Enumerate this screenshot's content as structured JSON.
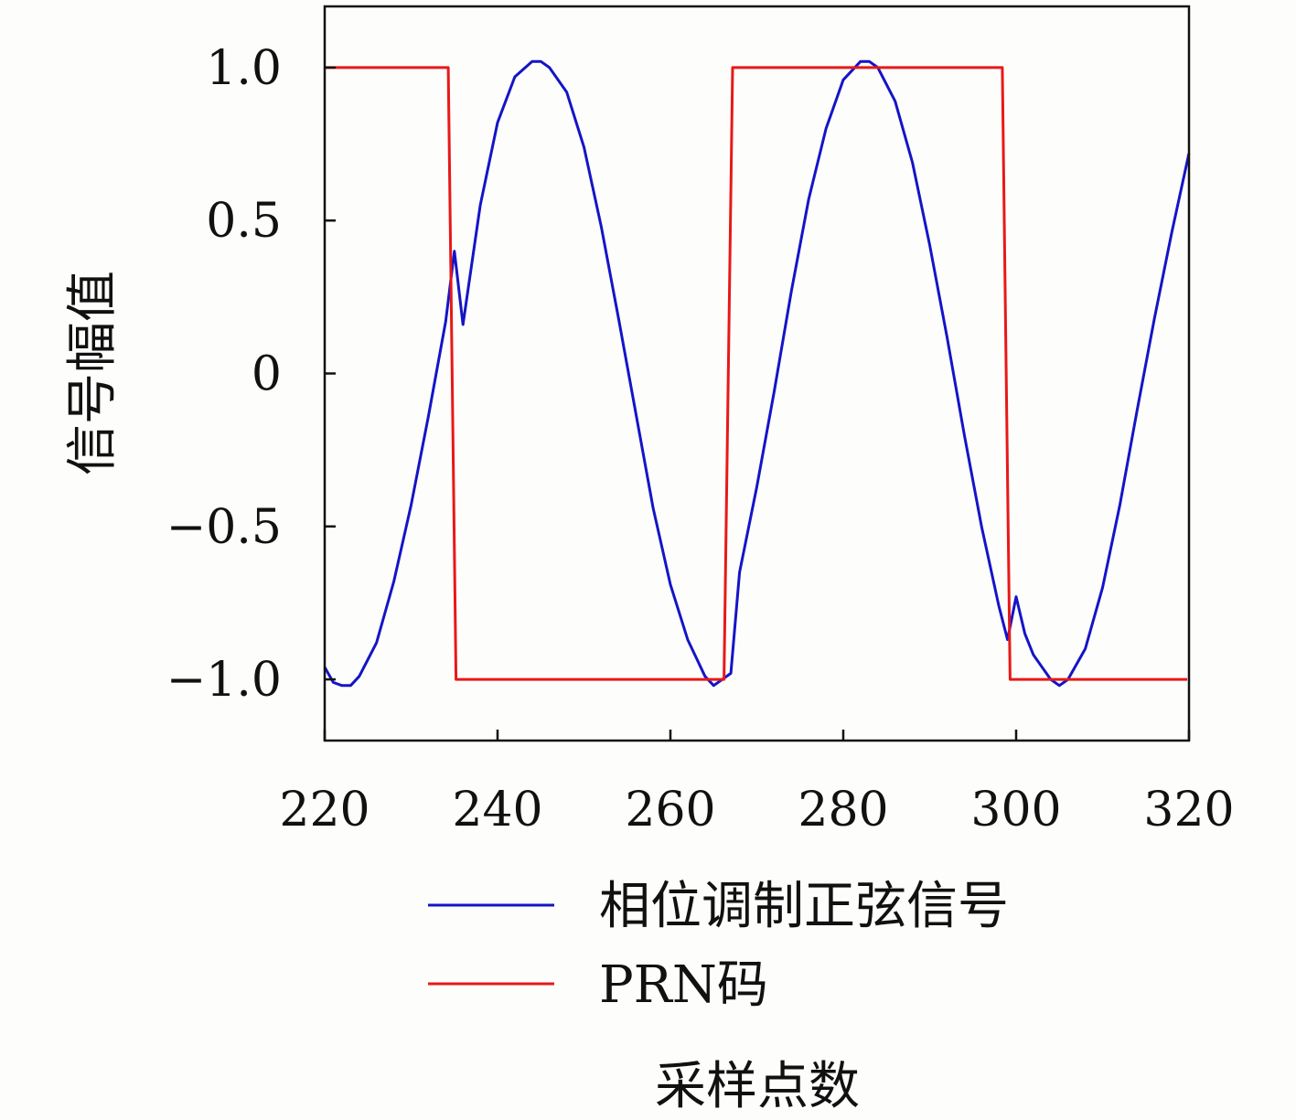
{
  "chart_data": {
    "type": "line",
    "title": "",
    "xlabel": "采样点数",
    "ylabel": "信号幅值",
    "xlim": [
      220,
      320
    ],
    "ylim": [
      -1.2,
      1.2
    ],
    "xticks": [
      220,
      240,
      260,
      280,
      300,
      320
    ],
    "xtick_labels": [
      "220",
      "240",
      "260",
      "280",
      "300",
      "320"
    ],
    "yticks": [
      -1.0,
      -0.5,
      0,
      0.5,
      1.0
    ],
    "ytick_labels": [
      "−1.0",
      "−0.5",
      "0",
      "0.5",
      "1.0"
    ],
    "grid": false,
    "legend_position": "below-plot",
    "series": [
      {
        "name": "相位调制正弦信号",
        "color": "#1414c8",
        "x": [
          220,
          221,
          222,
          223,
          224,
          226,
          228,
          230,
          232,
          234,
          235,
          236,
          238,
          240,
          242,
          244,
          245,
          246,
          248,
          250,
          252,
          254,
          256,
          258,
          260,
          262,
          264,
          265,
          266,
          267,
          268,
          270,
          272,
          274,
          276,
          278,
          280,
          282,
          283,
          284,
          286,
          288,
          290,
          292,
          294,
          296,
          298,
          299,
          300,
          301,
          302,
          304,
          305,
          306,
          308,
          310,
          312,
          314,
          316,
          318,
          320
        ],
        "y": [
          -0.96,
          -1.01,
          -1.02,
          -1.02,
          -0.99,
          -0.88,
          -0.68,
          -0.43,
          -0.14,
          0.17,
          0.4,
          0.16,
          0.55,
          0.82,
          0.97,
          1.02,
          1.02,
          1.0,
          0.92,
          0.74,
          0.48,
          0.18,
          -0.13,
          -0.44,
          -0.69,
          -0.87,
          -0.99,
          -1.02,
          -1.0,
          -0.98,
          -0.65,
          -0.37,
          -0.06,
          0.27,
          0.57,
          0.8,
          0.96,
          1.02,
          1.02,
          1.0,
          0.89,
          0.69,
          0.42,
          0.12,
          -0.2,
          -0.5,
          -0.76,
          -0.87,
          -0.73,
          -0.85,
          -0.92,
          -1.0,
          -1.02,
          -1.0,
          -0.9,
          -0.7,
          -0.43,
          -0.12,
          0.18,
          0.46,
          0.72
        ]
      },
      {
        "name": "PRN码",
        "color": "#e81818",
        "x": [
          220,
          234.3,
          235.2,
          266.2,
          267.2,
          298.4,
          299.3,
          319.8
        ],
        "y": [
          1.0,
          1.0,
          -1.0,
          -1.0,
          1.0,
          1.0,
          -1.0,
          -1.0
        ]
      }
    ]
  }
}
